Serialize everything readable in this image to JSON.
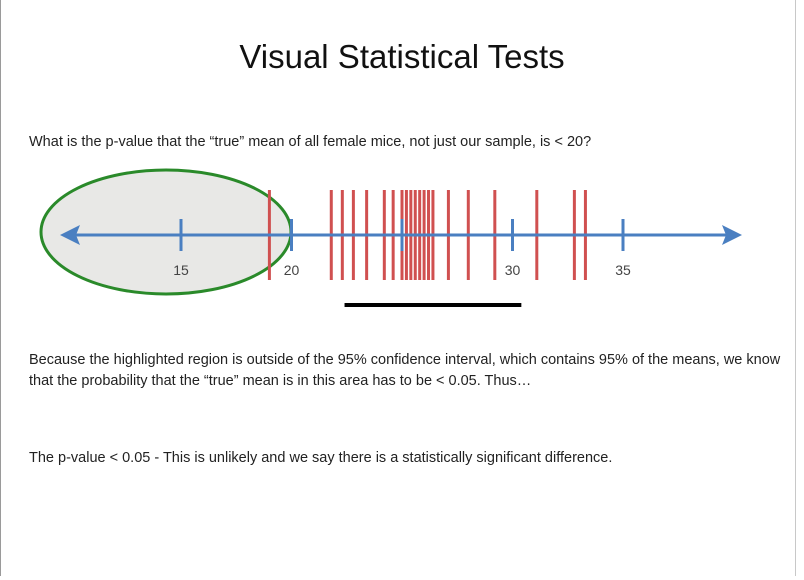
{
  "slide": {
    "title": "Visual Statistical Tests",
    "question": "What is the p-value that the “true” mean of all female mice, not just our sample, is < 20?",
    "explanation": "Because the highlighted region is outside of the 95% confidence interval, which contains 95% of the means, we know that the probability that the “true” mean is in this area has to be < 0.05.  Thus…",
    "conclusion": "The p-value < 0.05 - This is unlikely and we say there is a statistically significant difference."
  },
  "number_line": {
    "ticks": [
      15,
      20,
      25,
      30,
      35
    ],
    "tick_labels": [
      "15",
      "20",
      "",
      "30",
      "35"
    ],
    "sample_means": [
      19,
      21.8,
      22.3,
      22.8,
      23.4,
      24.2,
      24.6,
      25.0,
      25.2,
      25.4,
      25.6,
      25.8,
      26.0,
      26.2,
      26.4,
      27.1,
      28.0,
      29.2,
      31.1,
      32.8,
      33.3
    ],
    "highlighted_region": {
      "from": 14,
      "to": 20,
      "label_meaning": "mean < 20"
    },
    "confidence_interval_95": [
      22.4,
      30.4
    ],
    "colors": {
      "axis": "#4a7fc1",
      "sample_mark": "#d05050",
      "region_outline": "#2a8a2a",
      "region_fill": "#e8e8e6",
      "interval_bar": "#000000"
    }
  }
}
